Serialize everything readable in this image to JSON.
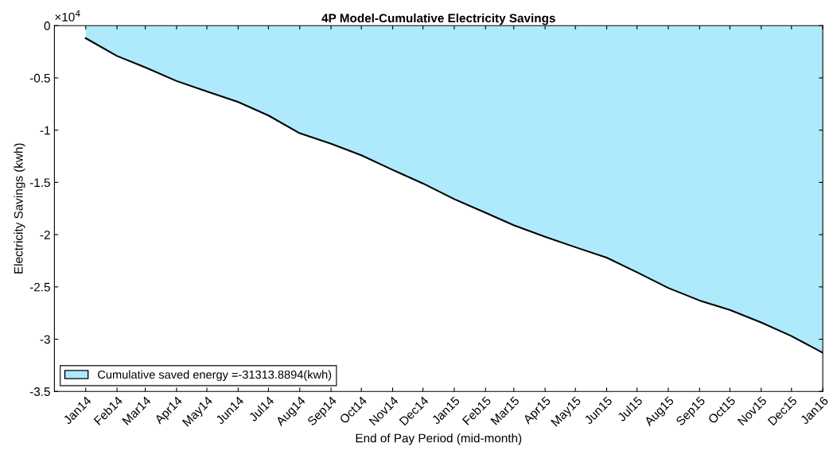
{
  "chart_data": {
    "type": "area",
    "title": "4P Model-Cumulative Electricity Savings",
    "xlabel": "End of Pay Period (mid-month)",
    "ylabel": "Electricity Savings (kwh)",
    "x": [
      "2014-01",
      "2014-02",
      "2014-03",
      "2014-04",
      "2014-05",
      "2014-06",
      "2014-07",
      "2014-08",
      "2014-09",
      "2014-10",
      "2014-11",
      "2014-12",
      "2015-01",
      "2015-02",
      "2015-03",
      "2015-04",
      "2015-05",
      "2015-06",
      "2015-07",
      "2015-08",
      "2015-09",
      "2015-10",
      "2015-11",
      "2015-12",
      "2016-01"
    ],
    "series": [
      {
        "name": "Cumulative saved energy =-31313.8894(kwh)",
        "color": "#aeeafc",
        "values": [
          -0.12,
          -0.29,
          -0.4,
          -0.53,
          -0.63,
          -0.73,
          -0.86,
          -1.03,
          -1.13,
          -1.24,
          -1.38,
          -1.51,
          -1.66,
          -1.79,
          -1.91,
          -2.02,
          -2.12,
          -2.22,
          -2.36,
          -2.51,
          -2.63,
          -2.72,
          -2.84,
          -2.97,
          -3.13
        ]
      }
    ],
    "xlim": [
      "2013-12",
      "2016-01"
    ],
    "xticks": [
      {
        "value": "2014-01",
        "label": "Jan14"
      },
      {
        "value": "2014-02",
        "label": "Feb14"
      },
      {
        "value": "2014-03",
        "label": "Mar14"
      },
      {
        "value": "2014-04",
        "label": "Apr14"
      },
      {
        "value": "2014-05",
        "label": "May14"
      },
      {
        "value": "2014-06",
        "label": "Jun14"
      },
      {
        "value": "2014-07",
        "label": "Jul14"
      },
      {
        "value": "2014-08",
        "label": "Aug14"
      },
      {
        "value": "2014-09",
        "label": "Sep14"
      },
      {
        "value": "2014-10",
        "label": "Oct14"
      },
      {
        "value": "2014-11",
        "label": "Nov14"
      },
      {
        "value": "2014-12",
        "label": "Dec14"
      },
      {
        "value": "2015-01",
        "label": "Jan15"
      },
      {
        "value": "2015-02",
        "label": "Feb15"
      },
      {
        "value": "2015-03",
        "label": "Mar15"
      },
      {
        "value": "2015-04",
        "label": "Apr15"
      },
      {
        "value": "2015-05",
        "label": "May15"
      },
      {
        "value": "2015-06",
        "label": "Jun15"
      },
      {
        "value": "2015-07",
        "label": "Jul15"
      },
      {
        "value": "2015-08",
        "label": "Aug15"
      },
      {
        "value": "2015-09",
        "label": "Sep15"
      },
      {
        "value": "2015-10",
        "label": "Oct15"
      },
      {
        "value": "2015-11",
        "label": "Nov15"
      },
      {
        "value": "2015-12",
        "label": "Dec15"
      },
      {
        "value": "2016-01",
        "label": "Jan16"
      }
    ],
    "ylim": [
      -3.5,
      0
    ],
    "yticks": [
      -3.5,
      -3,
      -2.5,
      -2,
      -1.5,
      -1,
      -0.5,
      0
    ],
    "annotations": [
      "×10$^{4}$"
    ],
    "grid": false,
    "legend": "bottom left"
  }
}
